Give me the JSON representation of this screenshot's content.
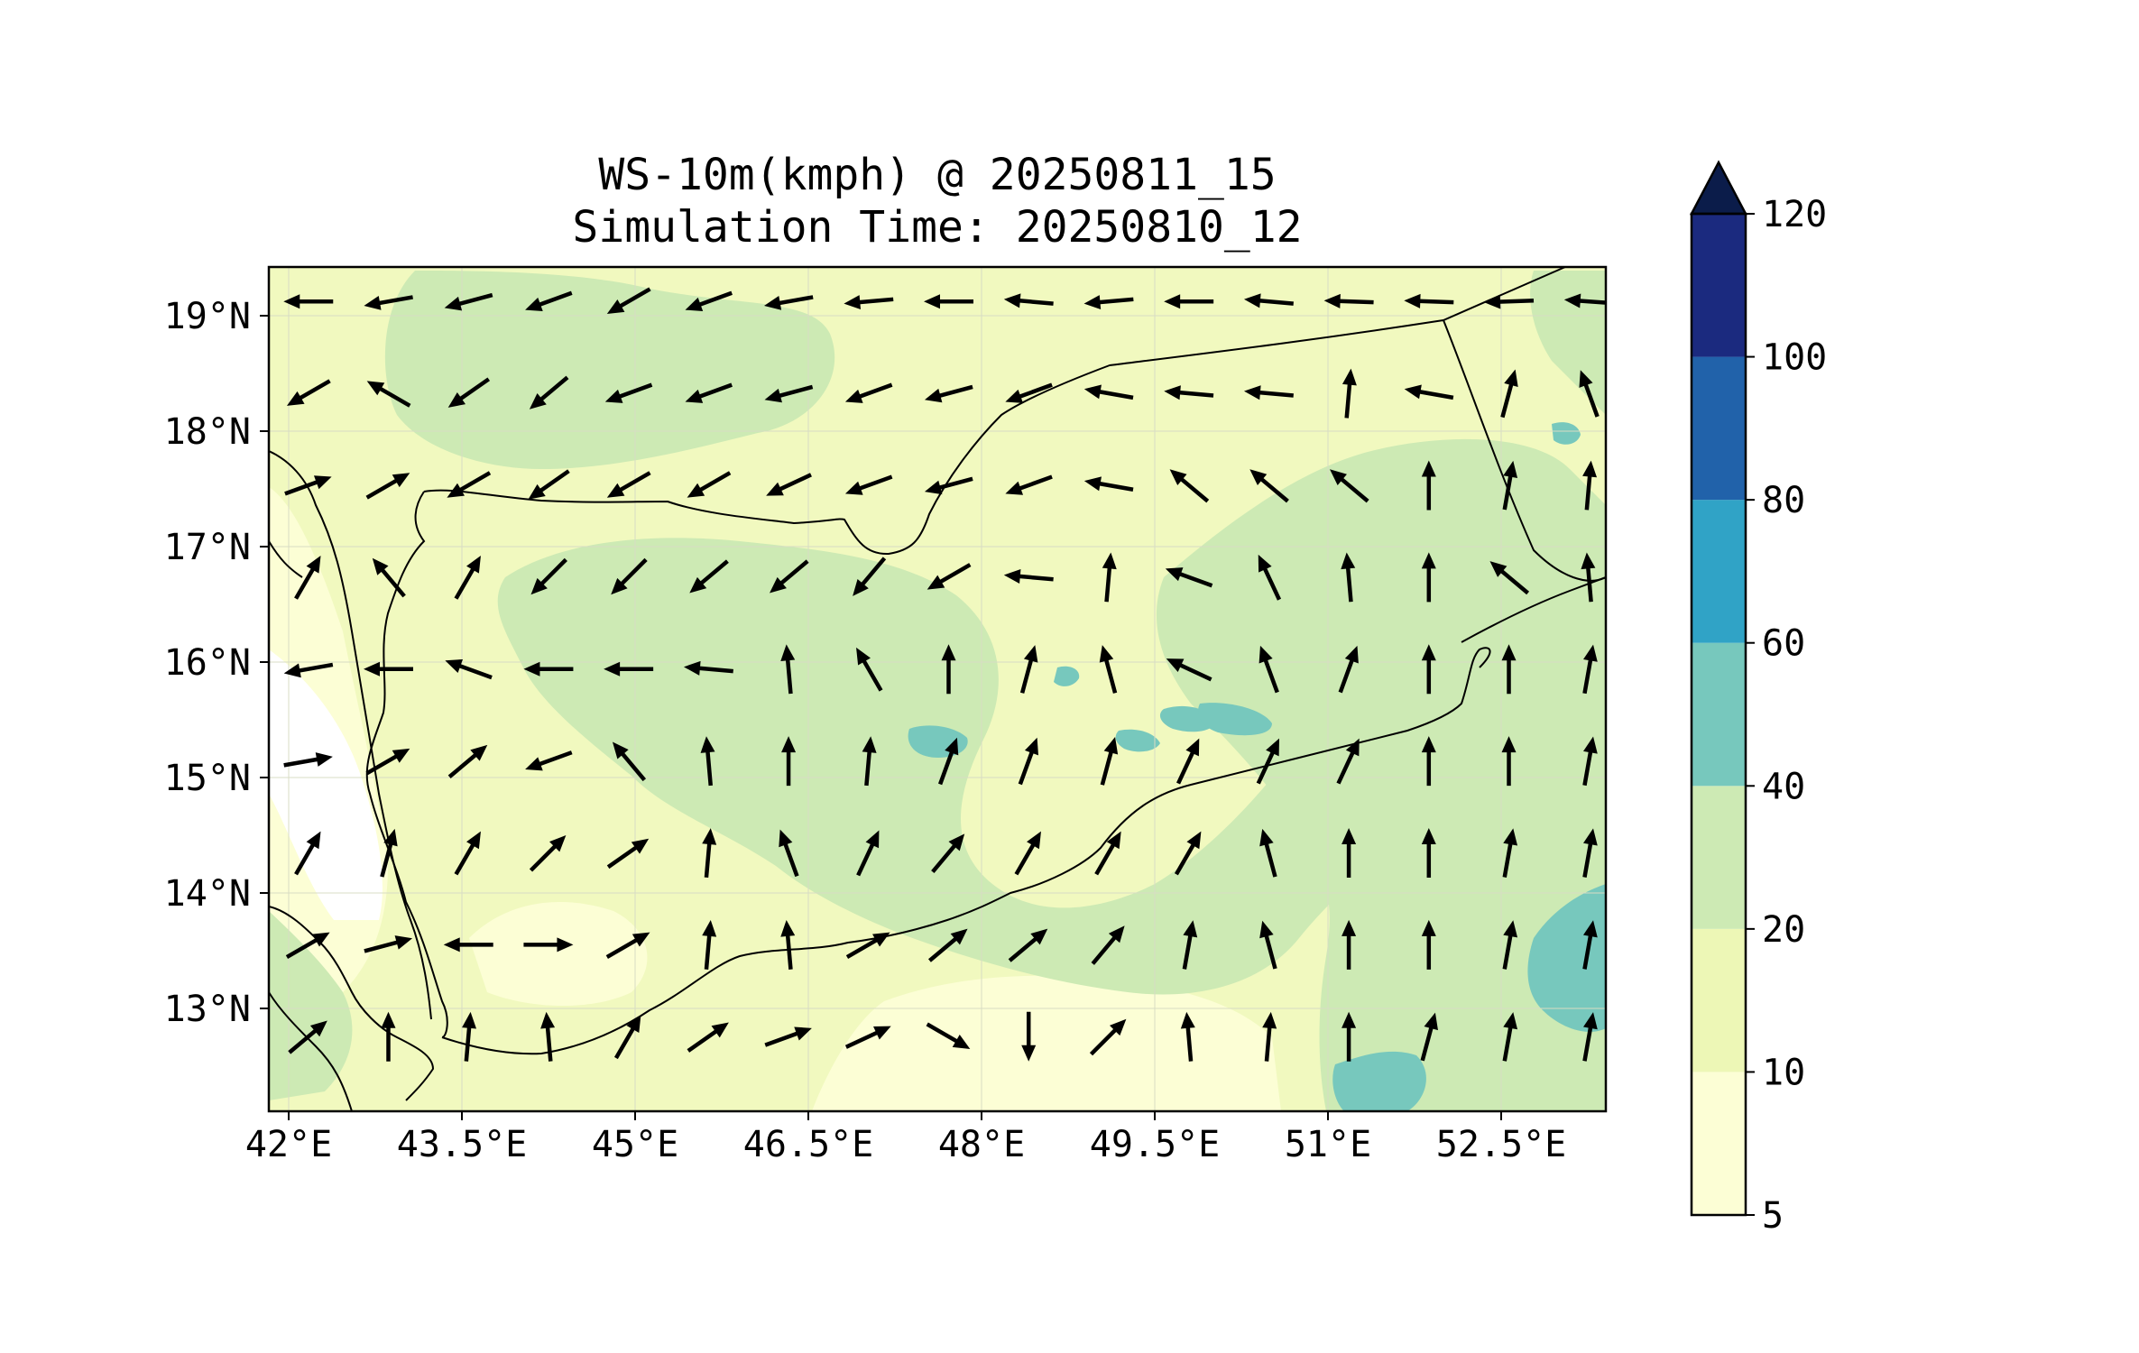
{
  "title": {
    "line1": "WS-10m(kmph) @ 20250811_15",
    "line2": "Simulation Time: 20250810_12"
  },
  "map": {
    "lon_range": [
      41.95,
      53.8
    ],
    "lat_range": [
      12.1,
      19.45
    ],
    "x_ticks": [
      "42°E",
      "43.5°E",
      "45°E",
      "46.5°E",
      "48°E",
      "49.5°E",
      "51°E",
      "52.5°E"
    ],
    "y_ticks": [
      "19°N",
      "18°N",
      "17°N",
      "16°N",
      "15°N",
      "14°N",
      "13°N"
    ],
    "land_color": "#f1f9bf",
    "grid": true
  },
  "colorbar": {
    "levels": [
      "5",
      "10",
      "20",
      "40",
      "60",
      "80",
      "100",
      "120"
    ],
    "colors": [
      "#fcfed5",
      "#edf7b6",
      "#cdeab4",
      "#77c8bd",
      "#30a3c6",
      "#2162aa",
      "#1b2a7f"
    ],
    "extend_color": "#0b1c4a",
    "extend": "max"
  },
  "wind_field": {
    "rows": [
      {
        "lat": 19.15,
        "angles": [
          180,
          190,
          195,
          200,
          210,
          200,
          190,
          185,
          180,
          175,
          185,
          180,
          175,
          178,
          178,
          182,
          176
        ]
      },
      {
        "lat": 18.35,
        "angles": [
          210,
          150,
          215,
          220,
          200,
          200,
          195,
          200,
          195,
          200,
          170,
          175,
          175,
          85,
          170,
          75,
          110
        ]
      },
      {
        "lat": 17.55,
        "angles": [
          20,
          30,
          210,
          215,
          210,
          210,
          205,
          200,
          195,
          200,
          170,
          140,
          140,
          140,
          90,
          80,
          85
        ]
      },
      {
        "lat": 16.75,
        "angles": [
          60,
          130,
          60,
          225,
          225,
          220,
          220,
          230,
          210,
          175,
          85,
          160,
          115,
          95,
          90,
          140,
          95
        ]
      },
      {
        "lat": 15.95,
        "angles": [
          190,
          180,
          160,
          180,
          180,
          175,
          95,
          120,
          90,
          75,
          105,
          155,
          110,
          70,
          90,
          90,
          80
        ]
      },
      {
        "lat": 15.15,
        "angles": [
          10,
          30,
          40,
          200,
          130,
          95,
          90,
          85,
          70,
          70,
          75,
          65,
          65,
          65,
          90,
          90,
          80
        ]
      },
      {
        "lat": 14.35,
        "angles": [
          60,
          75,
          60,
          45,
          35,
          85,
          110,
          65,
          50,
          60,
          60,
          60,
          105,
          90,
          90,
          80,
          80
        ]
      },
      {
        "lat": 13.55,
        "angles": [
          30,
          15,
          180,
          0,
          30,
          85,
          95,
          30,
          40,
          40,
          50,
          80,
          105,
          90,
          90,
          80,
          80
        ]
      },
      {
        "lat": 12.75,
        "angles": [
          40,
          90,
          85,
          95,
          60,
          35,
          20,
          25,
          330,
          270,
          45,
          95,
          85,
          90,
          75,
          80,
          80
        ]
      }
    ]
  }
}
